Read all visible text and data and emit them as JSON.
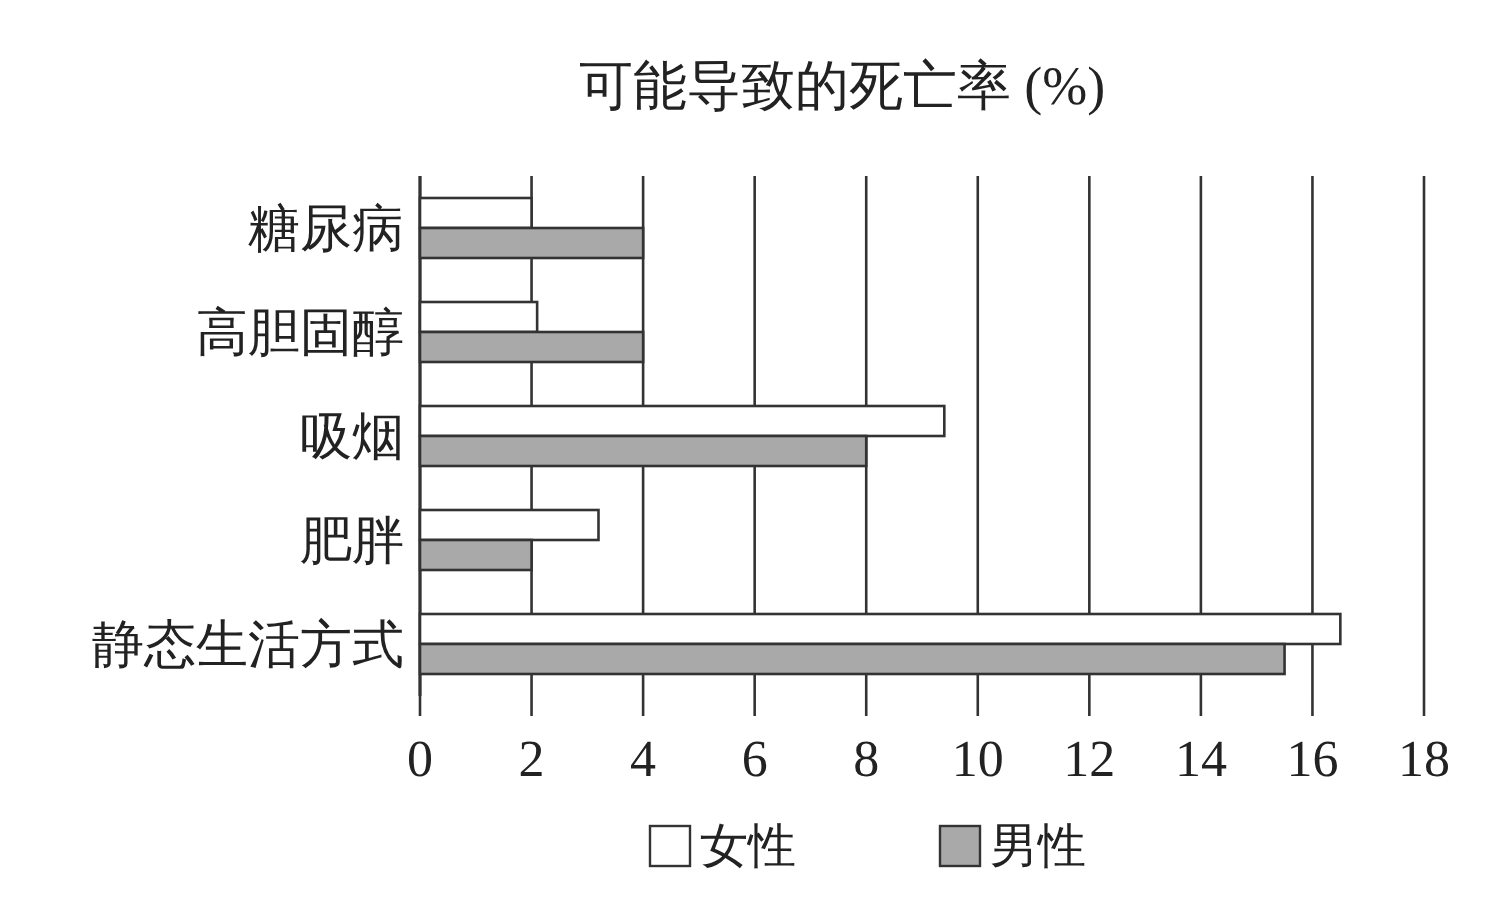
{
  "chart_data": {
    "type": "bar",
    "orientation": "horizontal",
    "title": "可能导致的死亡率 (%)",
    "categories": [
      "糖尿病",
      "高胆固醇",
      "吸烟",
      "肥胖",
      "静态生活方式"
    ],
    "series": [
      {
        "name": "女性",
        "color": "#ffffff",
        "values": [
          2.0,
          2.1,
          9.4,
          3.2,
          16.5
        ]
      },
      {
        "name": "男性",
        "color": "#a9a9a9",
        "values": [
          4,
          4,
          8,
          2,
          15.5
        ]
      }
    ],
    "xlim": [
      0,
      18
    ],
    "xticks": [
      0,
      2,
      4,
      6,
      8,
      10,
      12,
      14,
      16,
      18
    ],
    "grid": "x",
    "legend": "bottom"
  }
}
